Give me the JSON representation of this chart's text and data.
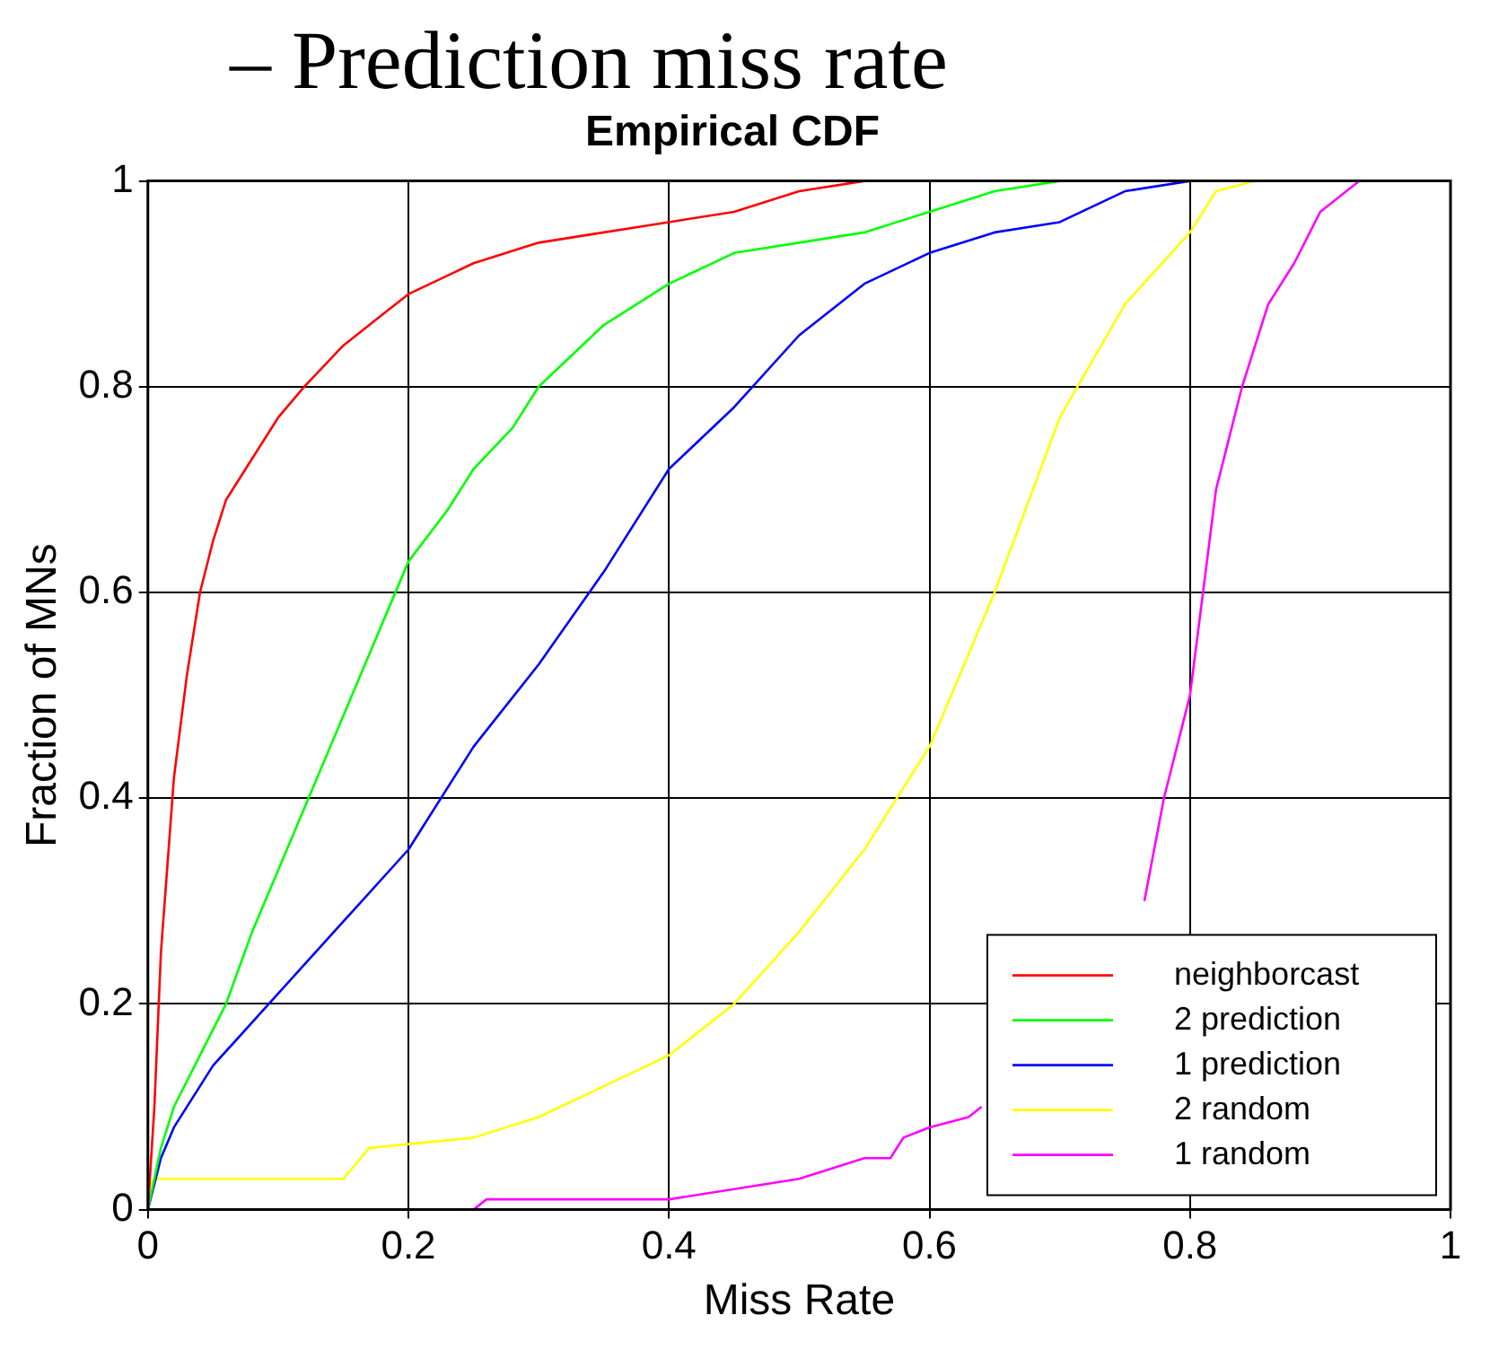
{
  "chart_data": {
    "type": "line",
    "title": "Empirical CDF",
    "xlabel": "Miss Rate",
    "ylabel": "Fraction of MNs",
    "annotations": [
      "– Prediction miss rate"
    ],
    "xlim": [
      0,
      1
    ],
    "ylim": [
      0,
      1
    ],
    "xticks": [
      0,
      0.2,
      0.4,
      0.6,
      0.8,
      1
    ],
    "yticks": [
      0,
      0.2,
      0.4,
      0.6,
      0.8,
      1
    ],
    "grid": true,
    "legend": "bottom right",
    "marker": "none",
    "line_style": "solid",
    "series": [
      {
        "name": "neighborcast",
        "color": "#ff0000",
        "x": [
          0,
          0.005,
          0.01,
          0.02,
          0.03,
          0.04,
          0.05,
          0.06,
          0.08,
          0.1,
          0.12,
          0.15,
          0.18,
          0.2,
          0.25,
          0.3,
          0.35,
          0.4,
          0.45,
          0.5,
          0.55
        ],
        "values": [
          0,
          0.1,
          0.25,
          0.42,
          0.52,
          0.6,
          0.65,
          0.69,
          0.73,
          0.77,
          0.8,
          0.84,
          0.87,
          0.89,
          0.92,
          0.94,
          0.95,
          0.96,
          0.97,
          0.99,
          1.0
        ]
      },
      {
        "name": "2 prediction",
        "color": "#00ff00",
        "x": [
          0,
          0.01,
          0.02,
          0.04,
          0.06,
          0.08,
          0.1,
          0.13,
          0.15,
          0.18,
          0.2,
          0.23,
          0.25,
          0.28,
          0.3,
          0.35,
          0.4,
          0.45,
          0.5,
          0.55,
          0.6,
          0.65,
          0.7
        ],
        "values": [
          0,
          0.06,
          0.1,
          0.15,
          0.2,
          0.27,
          0.33,
          0.42,
          0.48,
          0.57,
          0.63,
          0.68,
          0.72,
          0.76,
          0.8,
          0.86,
          0.9,
          0.93,
          0.94,
          0.95,
          0.97,
          0.99,
          1.0
        ]
      },
      {
        "name": "1 prediction",
        "color": "#0000ff",
        "x": [
          0,
          0.01,
          0.02,
          0.05,
          0.1,
          0.15,
          0.2,
          0.25,
          0.3,
          0.35,
          0.4,
          0.45,
          0.5,
          0.55,
          0.6,
          0.65,
          0.7,
          0.75,
          0.8
        ],
        "values": [
          0,
          0.05,
          0.08,
          0.14,
          0.21,
          0.28,
          0.35,
          0.45,
          0.53,
          0.62,
          0.72,
          0.78,
          0.85,
          0.9,
          0.93,
          0.95,
          0.96,
          0.99,
          1.0
        ]
      },
      {
        "name": "2 random",
        "color": "#ffff00",
        "x": [
          0,
          0.005,
          0.15,
          0.17,
          0.25,
          0.3,
          0.35,
          0.4,
          0.45,
          0.5,
          0.55,
          0.6,
          0.65,
          0.7,
          0.75,
          0.8,
          0.82,
          0.85
        ],
        "values": [
          0.02,
          0.03,
          0.03,
          0.06,
          0.07,
          0.09,
          0.12,
          0.15,
          0.2,
          0.27,
          0.35,
          0.45,
          0.6,
          0.77,
          0.88,
          0.95,
          0.99,
          1.0
        ]
      },
      {
        "name": "1 random",
        "color": "#ff00ff",
        "x": [
          0,
          0.25,
          0.26,
          0.4,
          0.45,
          0.5,
          0.55,
          0.57,
          0.58,
          0.6,
          0.63,
          0.64,
          0.7,
          0.765,
          0.78,
          0.8,
          0.81,
          0.82,
          0.84,
          0.86,
          0.88,
          0.9,
          0.93
        ],
        "values": [
          0,
          0,
          0.01,
          0.01,
          0.02,
          0.03,
          0.05,
          0.05,
          0.07,
          0.08,
          0.09,
          0.1,
          null,
          0.3,
          0.4,
          0.5,
          0.6,
          0.7,
          0.8,
          0.88,
          0.92,
          0.97,
          1.0
        ]
      }
    ]
  }
}
